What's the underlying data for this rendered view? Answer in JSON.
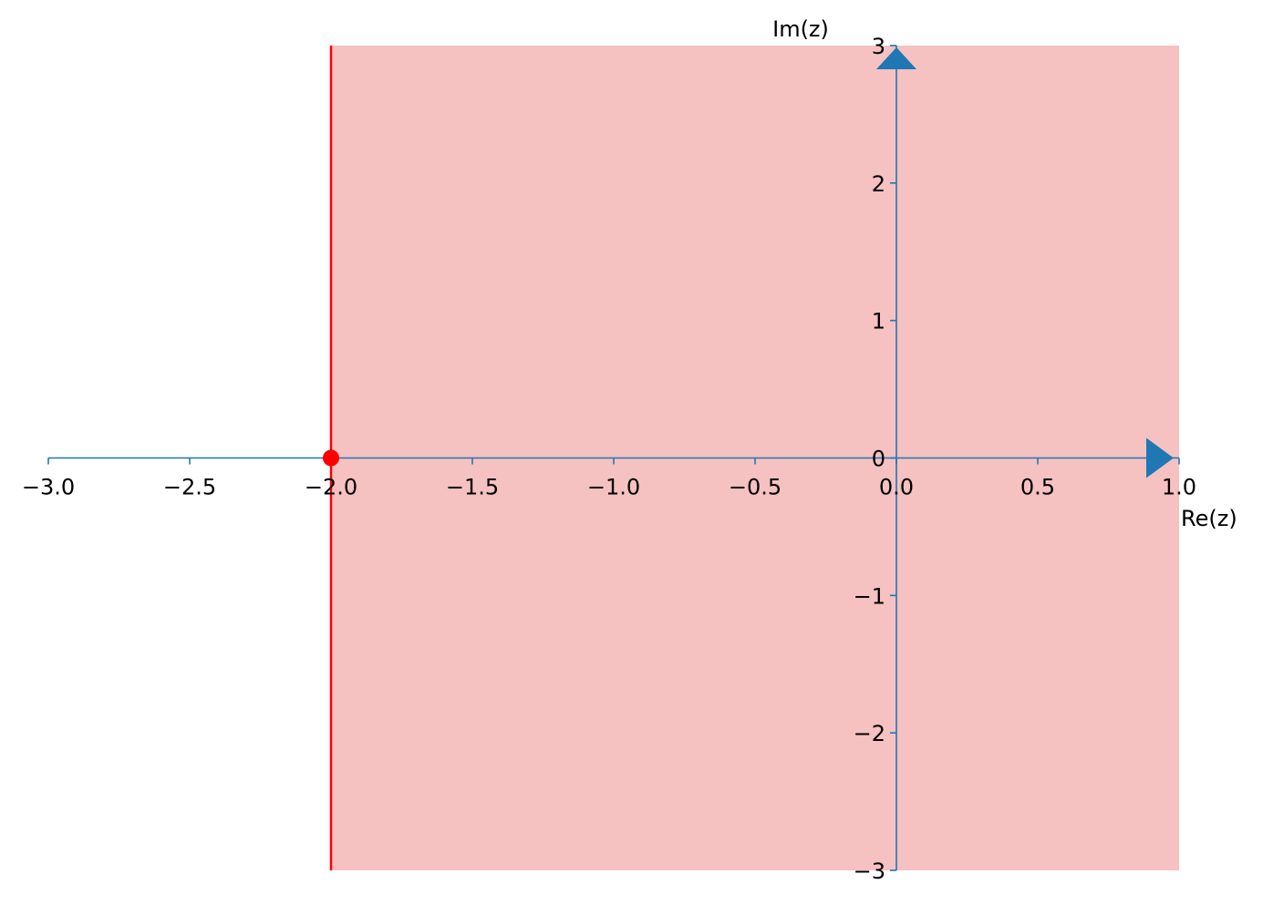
{
  "chart_data": {
    "type": "scatter",
    "x_label": "Re(z)",
    "y_label": "Im(z)",
    "xlim": [
      -3,
      1
    ],
    "ylim": [
      -3,
      3
    ],
    "xticks": [
      {
        "value": -3,
        "label": "−3.0"
      },
      {
        "value": -2.5,
        "label": "−2.5"
      },
      {
        "value": -2,
        "label": "−2.0"
      },
      {
        "value": -1.5,
        "label": "−1.5"
      },
      {
        "value": -1,
        "label": "−1.0"
      },
      {
        "value": -0.5,
        "label": "−0.5"
      },
      {
        "value": 0,
        "label": "0.0"
      },
      0.5,
      {
        "value": 1,
        "label": "1.0"
      }
    ],
    "yticks": [
      {
        "value": -3,
        "label": "−3"
      },
      {
        "value": -2,
        "label": "−2"
      },
      {
        "value": -1,
        "label": "−1"
      },
      0,
      1,
      2,
      3
    ],
    "axis_color": "#1f77b4",
    "region": {
      "from": -2,
      "to": 1,
      "color": "#f5c1c1"
    },
    "boundary_line": {
      "x": -2,
      "color": "#ff0000"
    },
    "series": [
      {
        "color": "#ff0000",
        "x": [
          -2
        ],
        "values": [
          0
        ]
      }
    ]
  }
}
